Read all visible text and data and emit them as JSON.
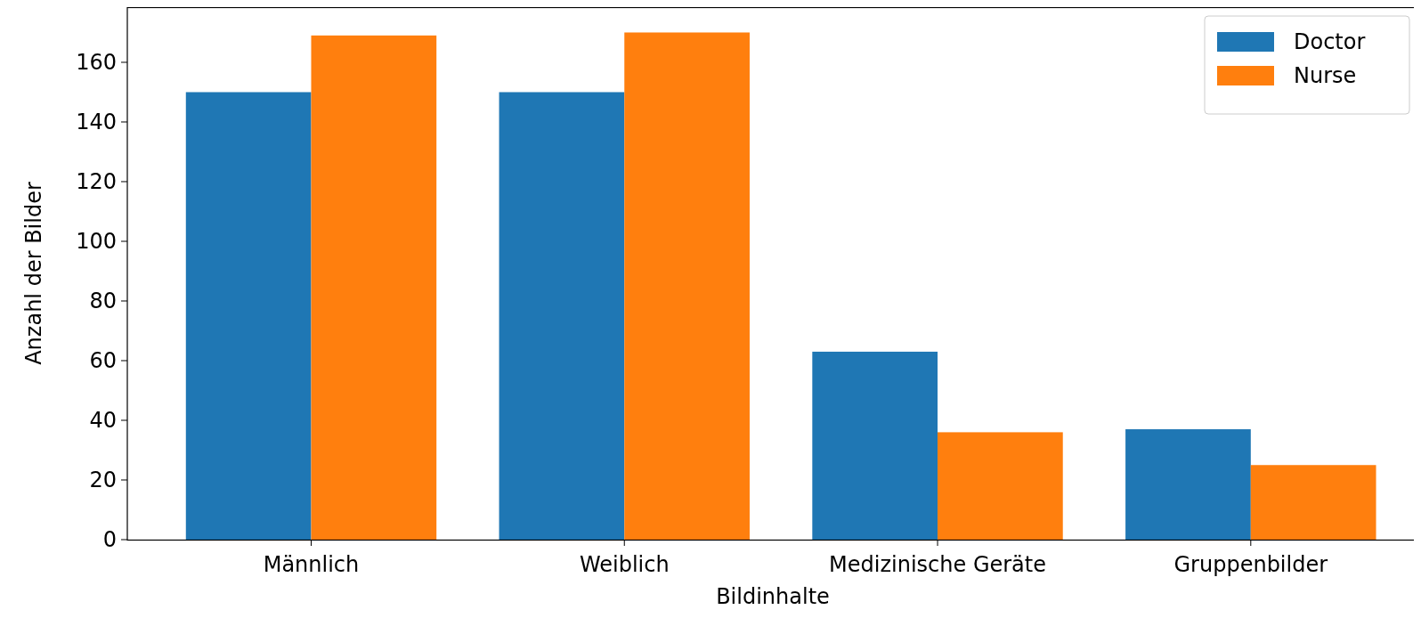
{
  "chart_data": {
    "type": "bar",
    "xlabel": "Bildinhalte",
    "ylabel": "Anzahl der Bilder",
    "categories": [
      "Männlich",
      "Weiblich",
      "Medizinische Geräte",
      "Gruppenbilder"
    ],
    "series": [
      {
        "name": "Doctor",
        "color": "#1f77b4",
        "values": [
          150,
          150,
          63,
          37
        ]
      },
      {
        "name": "Nurse",
        "color": "#ff7f0e",
        "values": [
          169,
          170,
          36,
          25
        ]
      }
    ],
    "ylim": [
      0,
      178.5
    ],
    "yticks": [
      0,
      20,
      40,
      60,
      80,
      100,
      120,
      140,
      160
    ],
    "grid": false,
    "legend": "top right"
  }
}
